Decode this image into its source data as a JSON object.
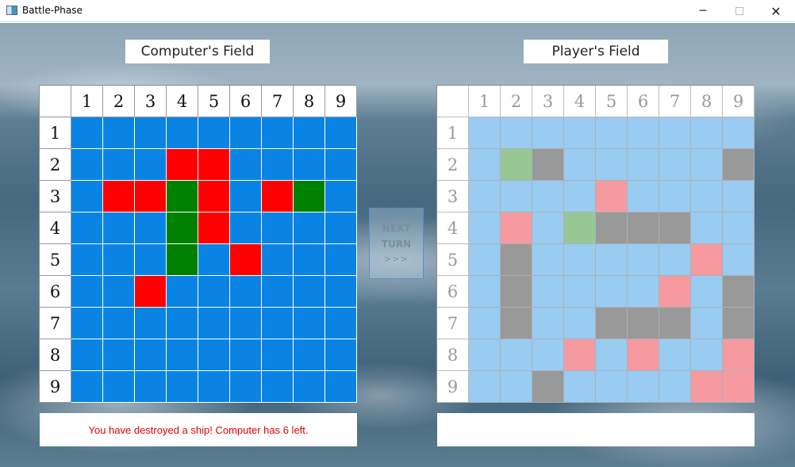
{
  "window": {
    "title": "Battle-Phase",
    "minimize_glyph": "─",
    "close_glyph": "✕"
  },
  "computer_field": {
    "title": "Computer's Field",
    "col_headers": [
      "1",
      "2",
      "3",
      "4",
      "5",
      "6",
      "7",
      "8",
      "9"
    ],
    "row_headers": [
      "1",
      "2",
      "3",
      "4",
      "5",
      "6",
      "7",
      "8",
      "9"
    ],
    "cells": [
      [
        "W",
        "W",
        "W",
        "W",
        "W",
        "W",
        "W",
        "W",
        "W"
      ],
      [
        "W",
        "W",
        "W",
        "H",
        "H",
        "W",
        "W",
        "W",
        "W"
      ],
      [
        "W",
        "H",
        "H",
        "S",
        "H",
        "W",
        "H",
        "S",
        "W"
      ],
      [
        "W",
        "W",
        "W",
        "S",
        "H",
        "W",
        "W",
        "W",
        "W"
      ],
      [
        "W",
        "W",
        "W",
        "S",
        "W",
        "H",
        "W",
        "W",
        "W"
      ],
      [
        "W",
        "W",
        "H",
        "W",
        "W",
        "W",
        "W",
        "W",
        "W"
      ],
      [
        "W",
        "W",
        "W",
        "W",
        "W",
        "W",
        "W",
        "W",
        "W"
      ],
      [
        "W",
        "W",
        "W",
        "W",
        "W",
        "W",
        "W",
        "W",
        "W"
      ],
      [
        "W",
        "W",
        "W",
        "W",
        "W",
        "W",
        "W",
        "W",
        "W"
      ]
    ],
    "status_text": "You have destroyed a ship! Computer has 6 left.",
    "status_color": "#e00000"
  },
  "player_field": {
    "title": "Player's Field",
    "col_headers": [
      "1",
      "2",
      "3",
      "4",
      "5",
      "6",
      "7",
      "8",
      "9"
    ],
    "row_headers": [
      "1",
      "2",
      "3",
      "4",
      "5",
      "6",
      "7",
      "8",
      "9"
    ],
    "cells": [
      [
        "W",
        "W",
        "W",
        "W",
        "W",
        "W",
        "W",
        "W",
        "W"
      ],
      [
        "W",
        "S",
        "G",
        "W",
        "W",
        "W",
        "W",
        "W",
        "G"
      ],
      [
        "W",
        "W",
        "W",
        "W",
        "H",
        "W",
        "W",
        "W",
        "W"
      ],
      [
        "W",
        "H",
        "W",
        "S",
        "G",
        "G",
        "G",
        "W",
        "W"
      ],
      [
        "W",
        "G",
        "W",
        "W",
        "W",
        "W",
        "W",
        "H",
        "W"
      ],
      [
        "W",
        "G",
        "W",
        "W",
        "W",
        "W",
        "H",
        "W",
        "G"
      ],
      [
        "W",
        "G",
        "W",
        "W",
        "G",
        "G",
        "G",
        "W",
        "G"
      ],
      [
        "W",
        "W",
        "W",
        "H",
        "W",
        "H",
        "W",
        "W",
        "H"
      ],
      [
        "W",
        "W",
        "G",
        "W",
        "W",
        "W",
        "W",
        "H",
        "H"
      ]
    ],
    "status_text": ""
  },
  "next_turn": {
    "line1": "NEXT",
    "line2": "TURN",
    "line3": ">>>"
  },
  "colors": {
    "computer": {
      "W": "#0a84e4",
      "H": "#ff0000",
      "S": "#008000"
    },
    "player": {
      "W": "#9acbf0",
      "H": "#f69aa0",
      "S": "#97c893",
      "G": "#999999"
    }
  },
  "legend": {
    "W": "water",
    "H": "hit",
    "S": "sunk",
    "G": "ship"
  }
}
